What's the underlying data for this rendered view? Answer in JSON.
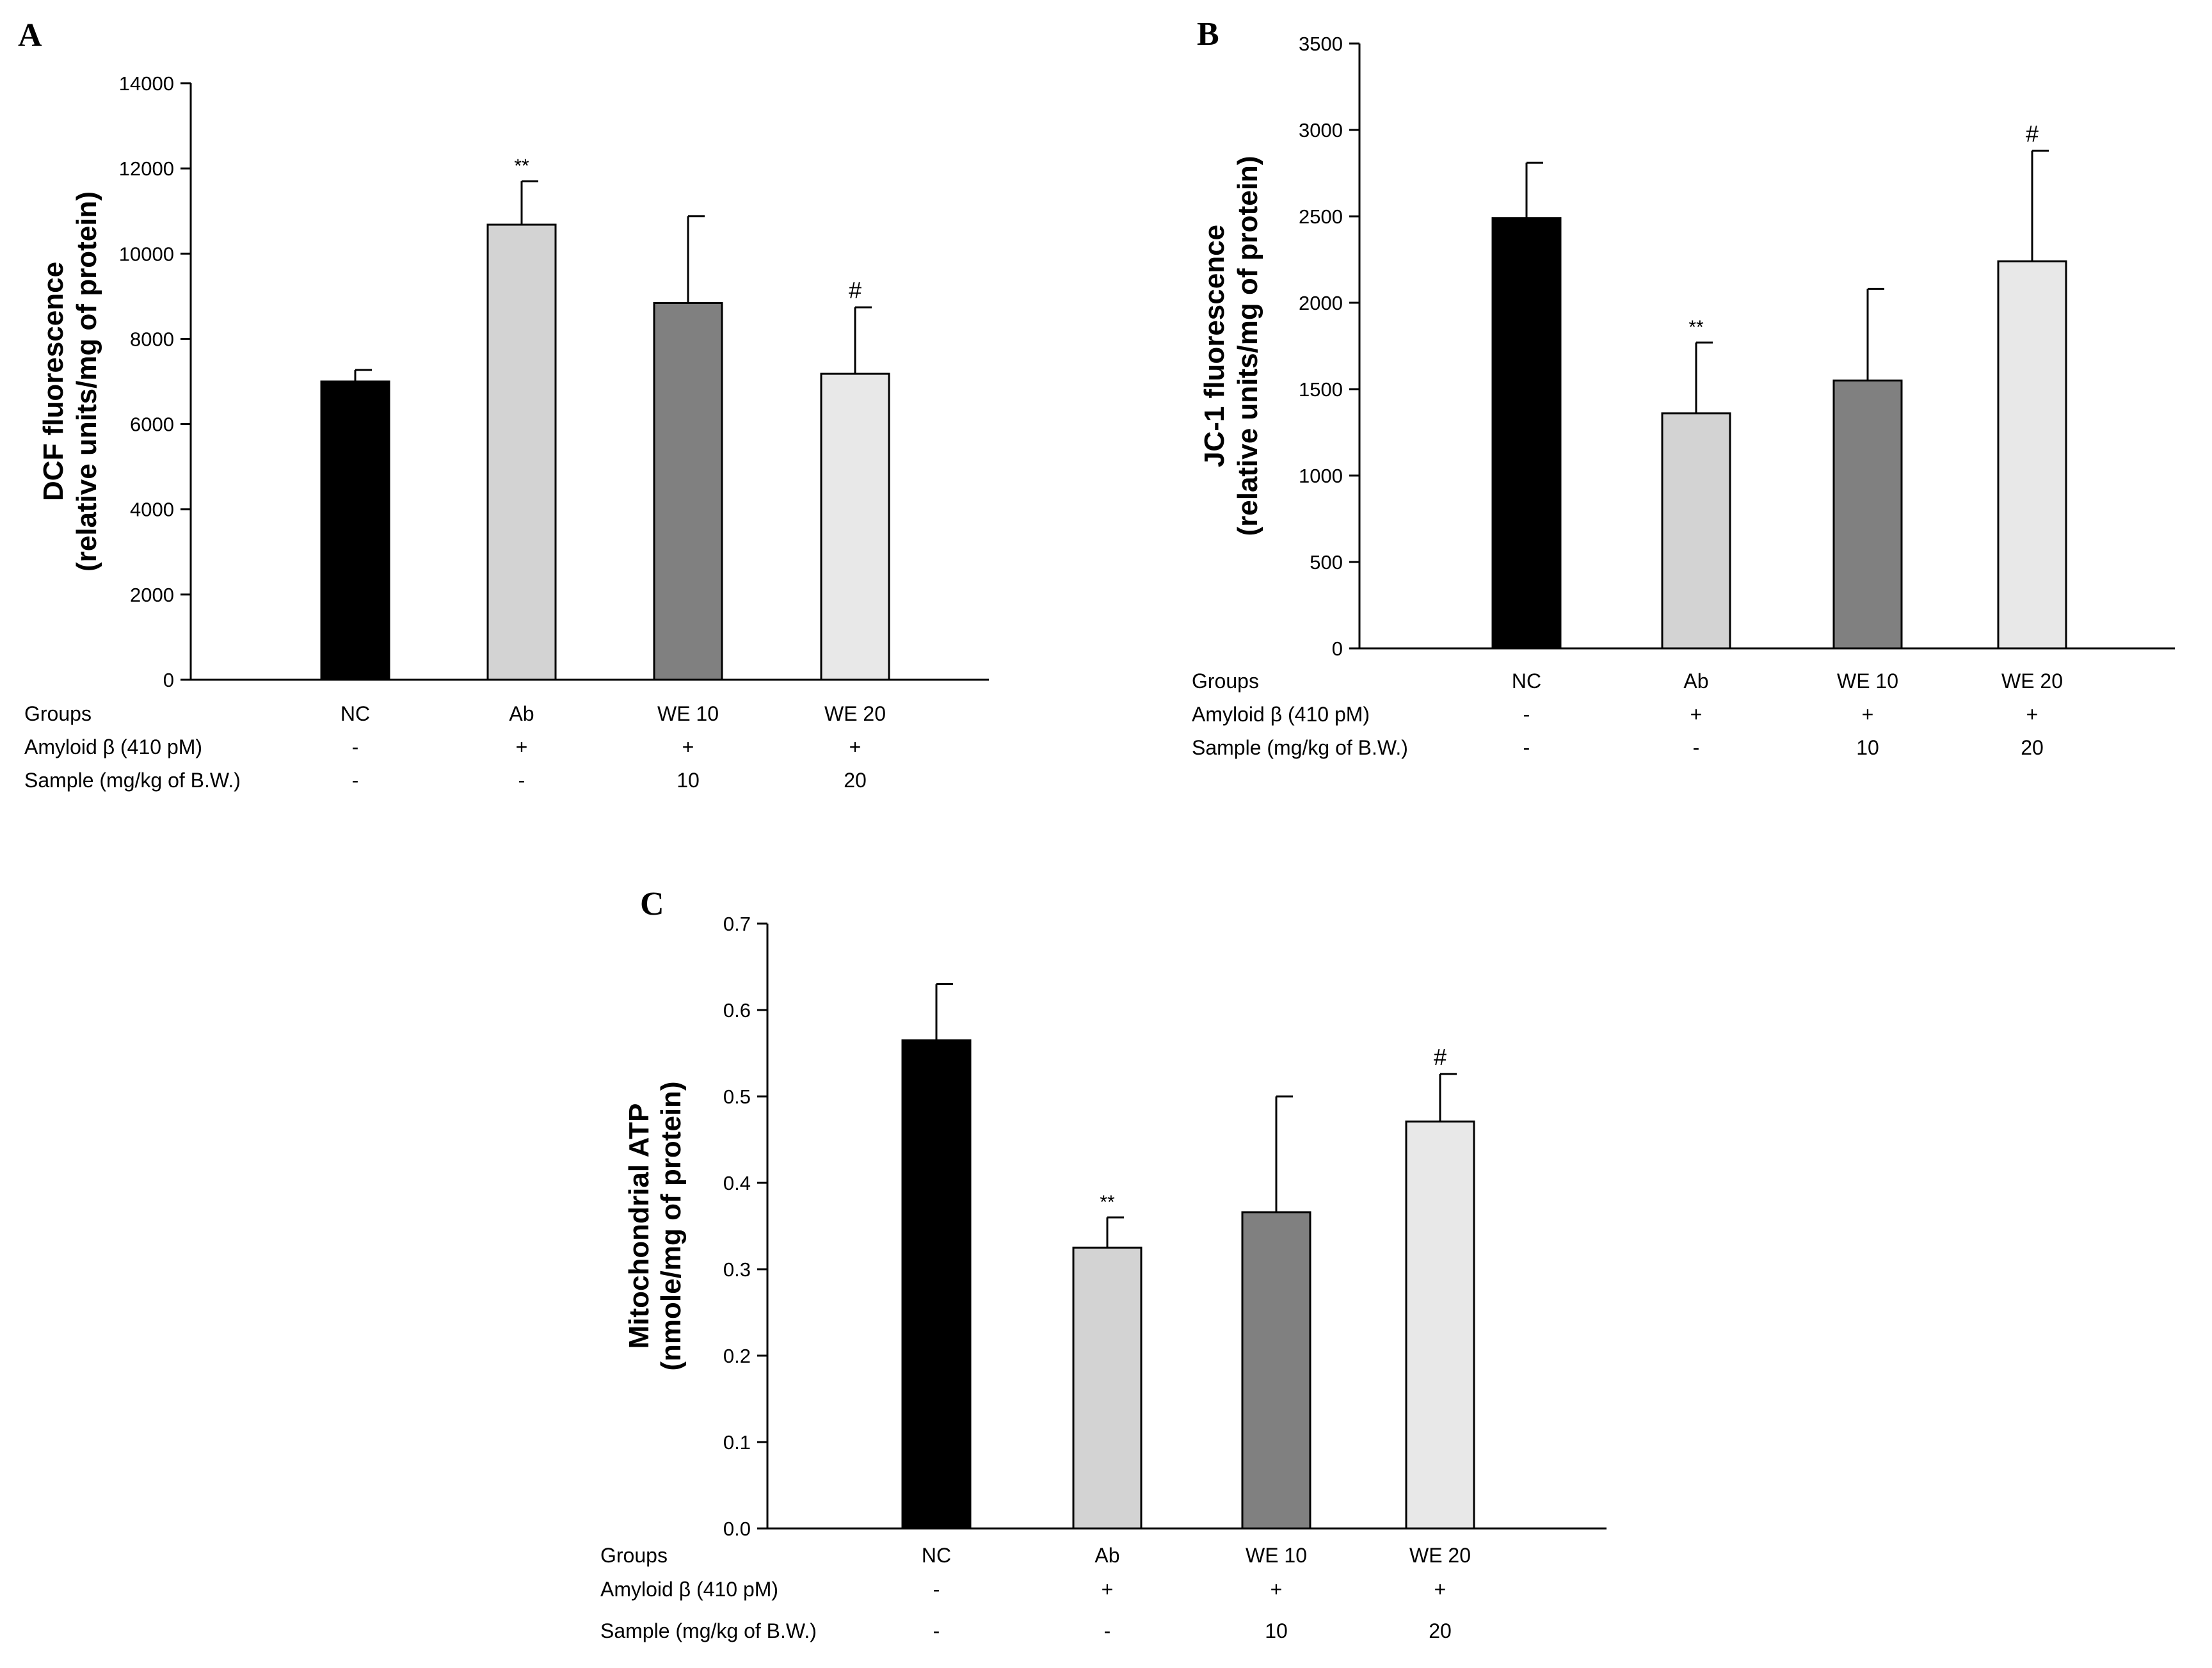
{
  "colors": {
    "NC": "#000000",
    "Ab": "#d3d3d3",
    "WE 10": "#808080",
    "WE 20": "#e8e8e8",
    "axis": "#000000"
  },
  "row_labels": [
    "Groups",
    "Amyloid β (410 pM)",
    "Sample (mg/kg of B.W.)"
  ],
  "chart_data": [
    {
      "panel": "A",
      "type": "bar",
      "ylabel_line1": "DCF fluorescence",
      "ylabel_line2": "(relative units/mg of protein)",
      "ylim": [
        0,
        14000
      ],
      "yticks": [
        0,
        2000,
        4000,
        6000,
        8000,
        10000,
        12000,
        14000
      ],
      "categories": [
        "NC",
        "Ab",
        "WE 10",
        "WE 20"
      ],
      "values": [
        7000,
        10680,
        8840,
        7180
      ],
      "errors": [
        270,
        1020,
        2040,
        1560
      ],
      "annotations": [
        "",
        "**",
        "",
        "#"
      ],
      "amyloid": [
        "-",
        "+",
        "+",
        "+"
      ],
      "sample": [
        "-",
        "-",
        "10",
        "20"
      ]
    },
    {
      "panel": "B",
      "type": "bar",
      "ylabel_line1": "JC-1 fluorescence",
      "ylabel_line2": "(relative units/mg of protein)",
      "ylim": [
        0,
        3500
      ],
      "yticks": [
        0,
        500,
        1000,
        1500,
        2000,
        2500,
        3000,
        3500
      ],
      "categories": [
        "NC",
        "Ab",
        "WE 10",
        "WE 20"
      ],
      "values": [
        2490,
        1360,
        1550,
        2240
      ],
      "errors": [
        320,
        410,
        530,
        640
      ],
      "annotations": [
        "",
        "**",
        "",
        "#"
      ],
      "amyloid": [
        "-",
        "+",
        "+",
        "+"
      ],
      "sample": [
        "-",
        "-",
        "10",
        "20"
      ]
    },
    {
      "panel": "C",
      "type": "bar",
      "ylabel_line1": "Mitochondrial ATP",
      "ylabel_line2": "(nmole/mg of protein)",
      "ylim": [
        0,
        0.7
      ],
      "yticks": [
        "0.0",
        "0.1",
        "0.2",
        "0.3",
        "0.4",
        "0.5",
        "0.6",
        "0.7"
      ],
      "categories": [
        "NC",
        "Ab",
        "WE 10",
        "WE 20"
      ],
      "values": [
        0.565,
        0.325,
        0.366,
        0.471
      ],
      "errors": [
        0.065,
        0.035,
        0.134,
        0.055
      ],
      "annotations": [
        "",
        "**",
        "",
        "#"
      ],
      "amyloid": [
        "-",
        "+",
        "+",
        "+"
      ],
      "sample": [
        "-",
        "-",
        "10",
        "20"
      ]
    }
  ]
}
